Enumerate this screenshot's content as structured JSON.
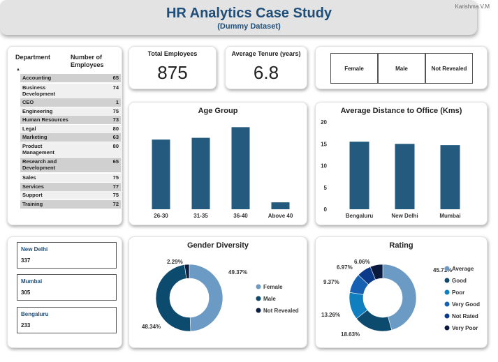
{
  "header": {
    "title": "HR Analytics Case Study",
    "subtitle": "(Dummy Dataset)",
    "author": "Karishma V.M"
  },
  "department_table": {
    "col_department": "Department",
    "col_count": "Number of Employees",
    "sort_indicator": "▲",
    "rows": [
      {
        "name": "Accounting",
        "value": "65"
      },
      {
        "name": "Business Development",
        "value": "74"
      },
      {
        "name": "CEO",
        "value": "1"
      },
      {
        "name": "Engineering",
        "value": "75"
      },
      {
        "name": "Human Resources",
        "value": "73"
      },
      {
        "name": "Legal",
        "value": "80"
      },
      {
        "name": "Marketing",
        "value": "63"
      },
      {
        "name": "Product Management",
        "value": "80"
      },
      {
        "name": "Research and Development",
        "value": "65"
      },
      {
        "name": "Sales",
        "value": "75"
      },
      {
        "name": "Services",
        "value": "77"
      },
      {
        "name": "Support",
        "value": "75"
      },
      {
        "name": "Training",
        "value": "72"
      }
    ]
  },
  "kpis": {
    "total_employees": {
      "label": "Total Employees",
      "value": "875"
    },
    "avg_tenure": {
      "label": "Average Tenure (years)",
      "value": "6.8"
    }
  },
  "gender_buttons": [
    "Female",
    "Male",
    "Not Revealed"
  ],
  "cities": [
    {
      "name": "New Delhi",
      "value": "337"
    },
    {
      "name": "Mumbai",
      "value": "305"
    },
    {
      "name": "Bengaluru",
      "value": "233"
    }
  ],
  "colors": {
    "bar": "#235a7d",
    "title": "#1f4e79",
    "female": "#6b9ac4",
    "male": "#0c4a6e",
    "not_revealed": "#0a1f44",
    "rating": [
      "#6b9ac4",
      "#0c4a6e",
      "#0f7fbf",
      "#1560b0",
      "#0b3a8a",
      "#0a1a3f"
    ]
  },
  "chart_data": [
    {
      "type": "bar",
      "title": "Age Group",
      "categories": [
        "26-30",
        "31-35",
        "36-40",
        "Above 40"
      ],
      "values": [
        242,
        248,
        285,
        24
      ],
      "ylim": [
        0,
        310
      ]
    },
    {
      "type": "bar",
      "title": "Average Distance to Office (Kms)",
      "categories": [
        "Bengaluru",
        "New Delhi",
        "Mumbai"
      ],
      "values": [
        15.5,
        15.0,
        14.7
      ],
      "yticks": [
        0,
        5,
        10,
        15,
        20
      ],
      "ylim": [
        0,
        20
      ],
      "grid": false
    },
    {
      "type": "pie",
      "donut": true,
      "title": "Gender Diversity",
      "categories": [
        "Female",
        "Male",
        "Not Revealed"
      ],
      "values": [
        49.37,
        48.34,
        2.29
      ],
      "labels": [
        "49.37%",
        "48.34%",
        "2.29%"
      ],
      "legend": "right"
    },
    {
      "type": "pie",
      "donut": true,
      "title": "Rating",
      "categories": [
        "Average",
        "Good",
        "Poor",
        "Very Good",
        "Not Rated",
        "Very Poor"
      ],
      "values": [
        45.71,
        18.63,
        13.26,
        9.37,
        6.97,
        6.06
      ],
      "labels": [
        "45.71%",
        "18.63%",
        "13.26%",
        "9.37%",
        "6.97%",
        "6.06%"
      ],
      "legend": "right"
    }
  ]
}
